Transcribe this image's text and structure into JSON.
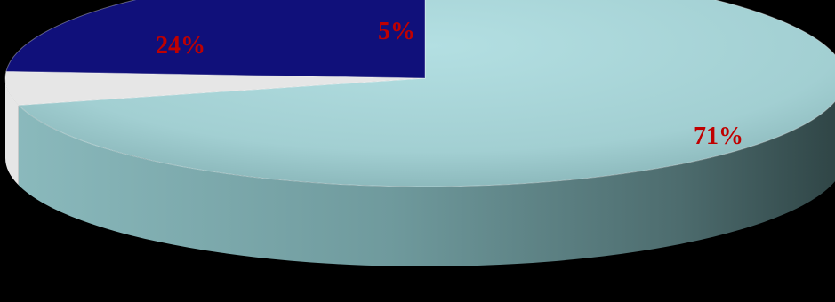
{
  "chart_data": {
    "type": "pie",
    "style": "3d",
    "background": "#000000",
    "label_color": "#c00000",
    "slices": [
      {
        "label": "71%",
        "value": 71,
        "color": "#a6d3d6"
      },
      {
        "label": "5%",
        "value": 5,
        "color": "#e6e6e6"
      },
      {
        "label": "24%",
        "value": 24,
        "color": "#10107a"
      }
    ]
  }
}
